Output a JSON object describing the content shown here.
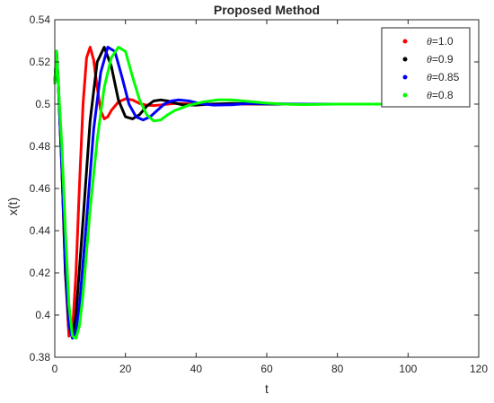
{
  "chart_data": {
    "type": "line",
    "title": "Proposed Method",
    "xlabel": "t",
    "ylabel": "x(t)",
    "xlim": [
      0,
      120
    ],
    "ylim": [
      0.38,
      0.54
    ],
    "xticks": [
      0,
      20,
      40,
      60,
      80,
      100,
      120
    ],
    "yticks": [
      0.38,
      0.4,
      0.42,
      0.44,
      0.46,
      0.48,
      0.5,
      0.52,
      0.54
    ],
    "grid": false,
    "legend_position": "top-right",
    "series": [
      {
        "name": "θ=1.0",
        "legend_symbol": "θ",
        "legend_value": "=1.0",
        "color": "#ff0000",
        "x": [
          0,
          0.5,
          1,
          2,
          3,
          4,
          5,
          6,
          7,
          8,
          9,
          10,
          11,
          12,
          13,
          14,
          15,
          16,
          18,
          20,
          22,
          24,
          26,
          28,
          30,
          32,
          34,
          36,
          40,
          45,
          50,
          60,
          80,
          100
        ],
        "y": [
          0.51,
          0.525,
          0.51,
          0.47,
          0.42,
          0.39,
          0.392,
          0.42,
          0.462,
          0.5,
          0.522,
          0.527,
          0.521,
          0.508,
          0.497,
          0.493,
          0.494,
          0.497,
          0.501,
          0.5025,
          0.502,
          0.5003,
          0.4995,
          0.4993,
          0.4996,
          0.5,
          0.5003,
          0.5002,
          0.5,
          0.5,
          0.5,
          0.5,
          0.5,
          0.5
        ]
      },
      {
        "name": "θ=0.9",
        "legend_symbol": "θ",
        "legend_value": "=0.9",
        "color": "#000000",
        "x": [
          0,
          0.5,
          1,
          2,
          3,
          4,
          5,
          6,
          8,
          10,
          12,
          14,
          16,
          18,
          20,
          22,
          24,
          26,
          28,
          30,
          32,
          34,
          36,
          40,
          44,
          50,
          60,
          80,
          100
        ],
        "y": [
          0.51,
          0.525,
          0.51,
          0.47,
          0.42,
          0.395,
          0.39,
          0.4,
          0.445,
          0.492,
          0.52,
          0.527,
          0.518,
          0.502,
          0.494,
          0.493,
          0.495,
          0.499,
          0.5015,
          0.502,
          0.5015,
          0.5005,
          0.4997,
          0.4995,
          0.5,
          0.5003,
          0.5,
          0.5,
          0.5
        ]
      },
      {
        "name": "θ=0.85",
        "legend_symbol": "θ",
        "legend_value": "=0.85",
        "color": "#0000ff",
        "x": [
          0,
          0.5,
          1,
          2,
          3,
          4,
          5,
          6,
          7,
          9,
          11,
          13,
          15,
          17,
          19,
          21,
          23,
          25,
          27,
          29,
          31,
          33,
          35,
          38,
          41,
          45,
          50,
          55,
          60,
          70,
          80,
          100
        ],
        "y": [
          0.51,
          0.525,
          0.51,
          0.47,
          0.425,
          0.395,
          0.389,
          0.392,
          0.405,
          0.445,
          0.488,
          0.515,
          0.527,
          0.525,
          0.513,
          0.5,
          0.494,
          0.4925,
          0.494,
          0.497,
          0.5,
          0.5015,
          0.502,
          0.5015,
          0.5003,
          0.4995,
          0.4997,
          0.5003,
          0.5002,
          0.5,
          0.5,
          0.5
        ]
      },
      {
        "name": "θ=0.8",
        "legend_symbol": "θ",
        "legend_value": "=0.8",
        "color": "#00ff00",
        "x": [
          0,
          0.5,
          1,
          2,
          3,
          4,
          5,
          6,
          7,
          8,
          10,
          12,
          14,
          16,
          18,
          20,
          22,
          24,
          26,
          28,
          30,
          32,
          34,
          38,
          42,
          46,
          50,
          55,
          60,
          65,
          70,
          80,
          100
        ],
        "y": [
          0.51,
          0.525,
          0.51,
          0.48,
          0.44,
          0.405,
          0.39,
          0.389,
          0.395,
          0.41,
          0.45,
          0.483,
          0.508,
          0.522,
          0.527,
          0.525,
          0.513,
          0.502,
          0.495,
          0.492,
          0.4925,
          0.495,
          0.497,
          0.4995,
          0.501,
          0.502,
          0.502,
          0.5012,
          0.5005,
          0.5,
          0.4998,
          0.5,
          0.5
        ]
      }
    ]
  }
}
